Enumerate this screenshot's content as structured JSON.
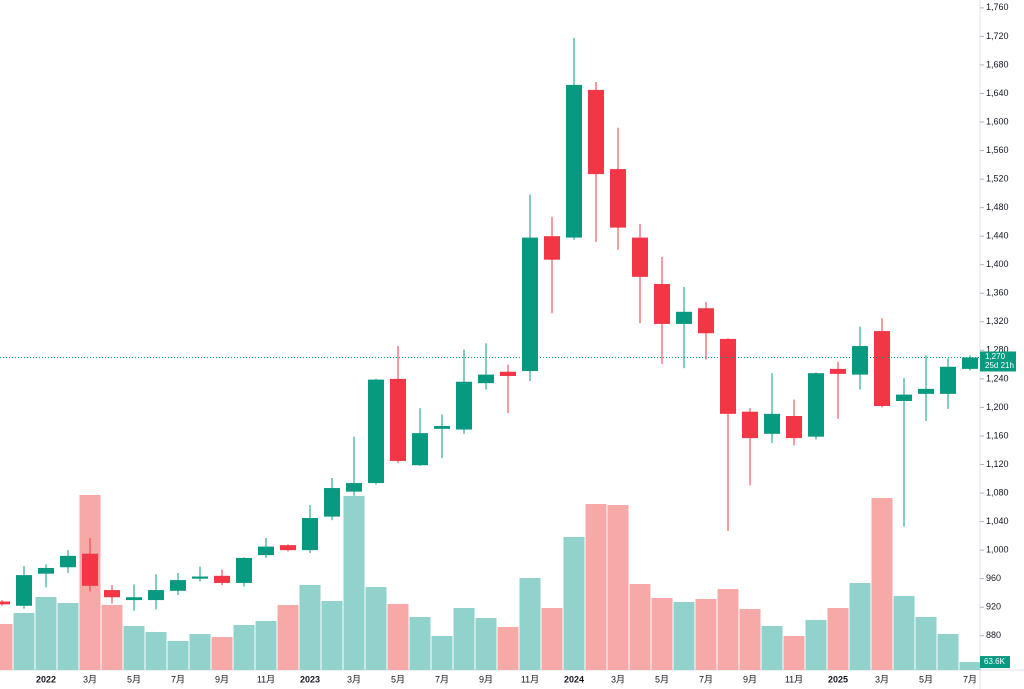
{
  "chart_data": {
    "type": "candlestick",
    "categories": [
      null,
      null,
      "2022",
      null,
      "3月",
      null,
      "5月",
      null,
      "7月",
      null,
      "9月",
      null,
      "11月",
      null,
      "2023",
      null,
      "3月",
      null,
      "5月",
      null,
      "7月",
      null,
      "9月",
      null,
      "11月",
      null,
      "2024",
      null,
      "3月",
      null,
      "5月",
      null,
      "7月",
      null,
      "9月",
      null,
      "11月",
      null,
      "2025",
      null,
      "3月",
      null,
      "5月",
      null,
      "7月"
    ],
    "open": [
      928,
      922,
      967,
      976,
      995,
      944,
      930,
      930,
      943,
      960,
      964,
      954,
      993,
      1007,
      1000,
      1047,
      1082,
      1094,
      1240,
      1119,
      1170,
      1169,
      1234,
      1250,
      1251,
      1440,
      1438,
      1645,
      1534,
      1438,
      1373,
      1317,
      1339,
      1296,
      1194,
      1163,
      1188,
      1159,
      1254,
      1246,
      1307,
      1209,
      1219,
      1219,
      1254
    ],
    "high": [
      930,
      978,
      980,
      1000,
      1017,
      951,
      952,
      966,
      968,
      977,
      973,
      990,
      1017,
      1008,
      1063,
      1101,
      1159,
      1240,
      1286,
      1199,
      1190,
      1281,
      1290,
      1260,
      1498,
      1467,
      1718,
      1656,
      1592,
      1457,
      1411,
      1369,
      1348,
      1297,
      1199,
      1248,
      1211,
      1249,
      1264,
      1313,
      1325,
      1241,
      1273,
      1269,
      1273
    ],
    "low": [
      922,
      918,
      948,
      968,
      942,
      925,
      915,
      917,
      937,
      956,
      951,
      949,
      989,
      998,
      996,
      1042,
      1076,
      1092,
      1122,
      1118,
      1129,
      1163,
      1225,
      1192,
      1237,
      1332,
      1435,
      1432,
      1421,
      1318,
      1261,
      1255,
      1267,
      1027,
      1091,
      1150,
      1147,
      1155,
      1184,
      1225,
      1200,
      1033,
      1181,
      1198,
      1252
    ],
    "close": [
      924,
      965,
      975,
      992,
      950,
      934,
      934,
      944,
      958,
      963,
      954,
      989,
      1005,
      1000,
      1045,
      1087,
      1094,
      1239,
      1125,
      1164,
      1174,
      1236,
      1246,
      1244,
      1438,
      1407,
      1652,
      1527,
      1452,
      1383,
      1317,
      1334,
      1304,
      1191,
      1157,
      1191,
      1157,
      1248,
      1247,
      1286,
      1202,
      1218,
      1226,
      1257,
      1270
    ],
    "volume": [
      368000,
      456000,
      584000,
      536000,
      1400000,
      520000,
      352000,
      304000,
      232000,
      288000,
      264000,
      360000,
      392000,
      520000,
      680000,
      552000,
      1392000,
      664000,
      528000,
      424000,
      272000,
      496000,
      416000,
      344000,
      736000,
      496000,
      1064000,
      1328000,
      1320000,
      688000,
      576000,
      544000,
      568000,
      648000,
      488000,
      352000,
      272000,
      400000,
      496000,
      696000,
      1376000,
      592000,
      424000,
      288000,
      63600
    ],
    "volume_labels": [
      null,
      null,
      null,
      null,
      null,
      null,
      null,
      null,
      null,
      null,
      null,
      null,
      null,
      null,
      null,
      null,
      null,
      null,
      null,
      null,
      null,
      null,
      null,
      null,
      null,
      null,
      null,
      null,
      null,
      null,
      null,
      null,
      null,
      null,
      null,
      null,
      null,
      null,
      null,
      null,
      null,
      null,
      null,
      null,
      "63.6K"
    ],
    "up_color": "#089981",
    "down_color": "#f23645",
    "up_volume_color": "#92d2cc",
    "down_volume_color": "#f7a9a7",
    "last_price": {
      "value": 1270,
      "label": "1,270"
    },
    "countdown": "25d 21h",
    "ylim": [
      832,
      1771
    ],
    "yticks": [
      880,
      920,
      960,
      {
        "value": 1000,
        "label": "1,000"
      },
      {
        "value": 1040,
        "label": "1,040"
      },
      {
        "value": 1080,
        "label": "1,080"
      },
      {
        "value": 1120,
        "label": "1,120"
      },
      {
        "value": 1160,
        "label": "1,160"
      },
      {
        "value": 1200,
        "label": "1,200"
      },
      {
        "value": 1240,
        "label": "1,240"
      },
      {
        "value": 1280,
        "label": "1,280"
      },
      {
        "value": 1320,
        "label": "1,320"
      },
      {
        "value": 1360,
        "label": "1,360"
      },
      {
        "value": 1400,
        "label": "1,400"
      },
      {
        "value": 1440,
        "label": "1,440"
      },
      {
        "value": 1480,
        "label": "1,480"
      },
      {
        "value": 1520,
        "label": "1,520"
      },
      {
        "value": 1560,
        "label": "1,560"
      },
      {
        "value": 1600,
        "label": "1,600"
      },
      {
        "value": 1640,
        "label": "1,640"
      },
      {
        "value": 1680,
        "label": "1,680"
      },
      {
        "value": 1720,
        "label": "1,720"
      },
      {
        "value": 1760,
        "label": "1,760"
      }
    ],
    "grid": false
  }
}
